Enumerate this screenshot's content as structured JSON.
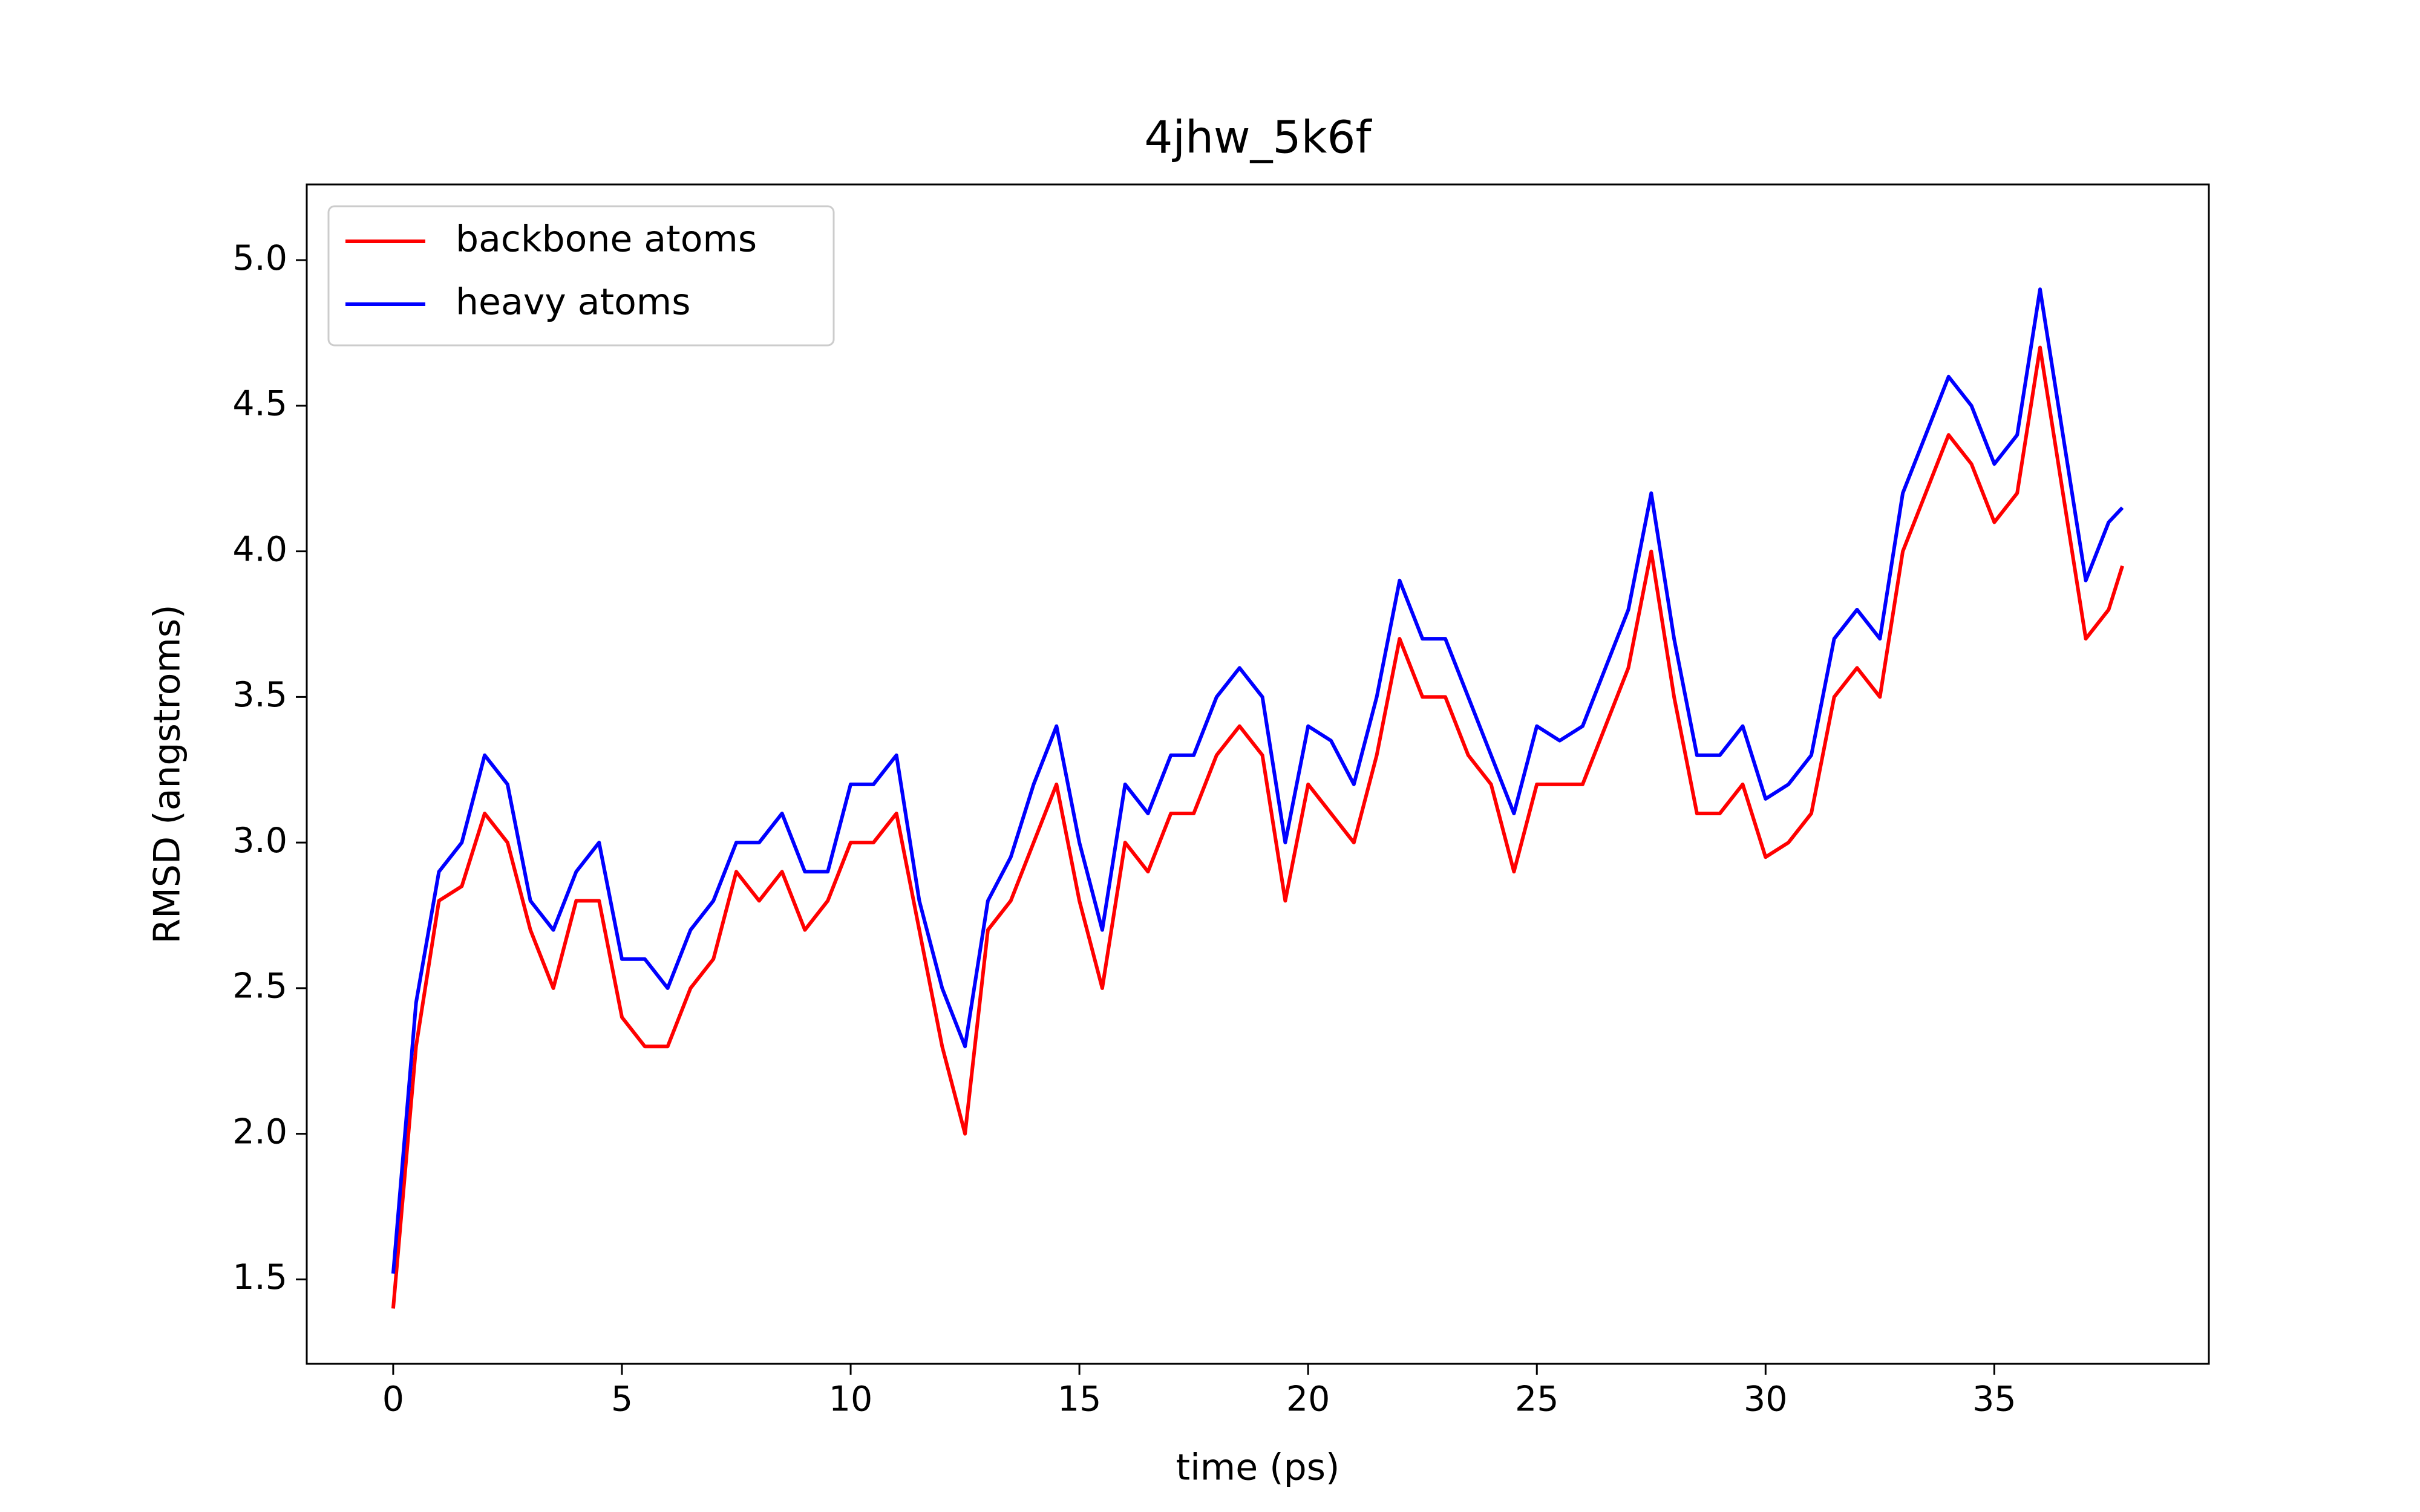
{
  "chart_data": {
    "type": "line",
    "title": "4jhw_5k6f",
    "x_label": "time (ps)",
    "y_label": "RMSD (angstroms)",
    "x": [
      0,
      0.5,
      1,
      1.5,
      2,
      2.5,
      3,
      3.5,
      4,
      4.5,
      5,
      5.5,
      6,
      6.5,
      7,
      7.5,
      8,
      8.5,
      9,
      9.5,
      10,
      10.5,
      11,
      11.5,
      12,
      12.5,
      13,
      13.5,
      14,
      14.5,
      15,
      15.5,
      16,
      16.5,
      17,
      17.5,
      18,
      18.5,
      19,
      19.5,
      20,
      20.5,
      21,
      21.5,
      22,
      22.5,
      23,
      23.5,
      24,
      24.5,
      25,
      25.5,
      26,
      26.5,
      27,
      27.5,
      28,
      28.5,
      29,
      29.5,
      30,
      30.5,
      31,
      31.5,
      32,
      32.5,
      33,
      33.5,
      34,
      34.5,
      35,
      35.5,
      36,
      36.5,
      37,
      37.5,
      37.8
    ],
    "series": [
      {
        "name": "backbone atoms",
        "color": "#ff0000",
        "values": [
          1.4,
          2.3,
          2.8,
          2.85,
          3.1,
          3.0,
          2.7,
          2.5,
          2.8,
          2.8,
          2.4,
          2.3,
          2.3,
          2.5,
          2.6,
          2.9,
          2.8,
          2.9,
          2.7,
          2.8,
          3.0,
          3.0,
          3.1,
          2.7,
          2.3,
          2.0,
          2.7,
          2.8,
          3.0,
          3.2,
          2.8,
          2.5,
          3.0,
          2.9,
          3.1,
          3.1,
          3.3,
          3.4,
          3.3,
          2.8,
          3.2,
          3.1,
          3.0,
          3.3,
          3.7,
          3.5,
          3.5,
          3.3,
          3.2,
          2.9,
          3.2,
          3.2,
          3.2,
          3.4,
          3.6,
          4.0,
          3.5,
          3.1,
          3.1,
          3.2,
          2.95,
          3.0,
          3.1,
          3.5,
          3.6,
          3.5,
          4.0,
          4.2,
          4.4,
          4.3,
          4.1,
          4.2,
          4.7,
          4.2,
          3.7,
          3.8,
          3.95
        ]
      },
      {
        "name": "heavy atoms",
        "color": "#0000ff",
        "values": [
          1.52,
          2.45,
          2.9,
          3.0,
          3.3,
          3.2,
          2.8,
          2.7,
          2.9,
          3.0,
          2.6,
          2.6,
          2.5,
          2.7,
          2.8,
          3.0,
          3.0,
          3.1,
          2.9,
          2.9,
          3.2,
          3.2,
          3.3,
          2.8,
          2.5,
          2.3,
          2.8,
          2.95,
          3.2,
          3.4,
          3.0,
          2.7,
          3.2,
          3.1,
          3.3,
          3.3,
          3.5,
          3.6,
          3.5,
          3.0,
          3.4,
          3.35,
          3.2,
          3.5,
          3.9,
          3.7,
          3.7,
          3.5,
          3.3,
          3.1,
          3.4,
          3.35,
          3.4,
          3.6,
          3.8,
          4.2,
          3.7,
          3.3,
          3.3,
          3.4,
          3.15,
          3.2,
          3.3,
          3.7,
          3.8,
          3.7,
          4.2,
          4.4,
          4.6,
          4.5,
          4.3,
          4.4,
          4.9,
          4.4,
          3.9,
          4.1,
          4.15
        ]
      }
    ],
    "xlim": [
      -1.89,
      39.69
    ],
    "xticks": [
      0,
      5,
      10,
      15,
      20,
      25,
      30,
      35
    ],
    "ylim": [
      1.21,
      5.26
    ],
    "yticks": [
      1.5,
      {
        "value": 2,
        "label": "2.0"
      },
      2.5,
      {
        "value": 3,
        "label": "3.0"
      },
      3.5,
      {
        "value": 4,
        "label": "4.0"
      },
      4.5,
      {
        "value": 5,
        "label": "5.0"
      }
    ],
    "grid": false,
    "legend_position": "upper left"
  }
}
